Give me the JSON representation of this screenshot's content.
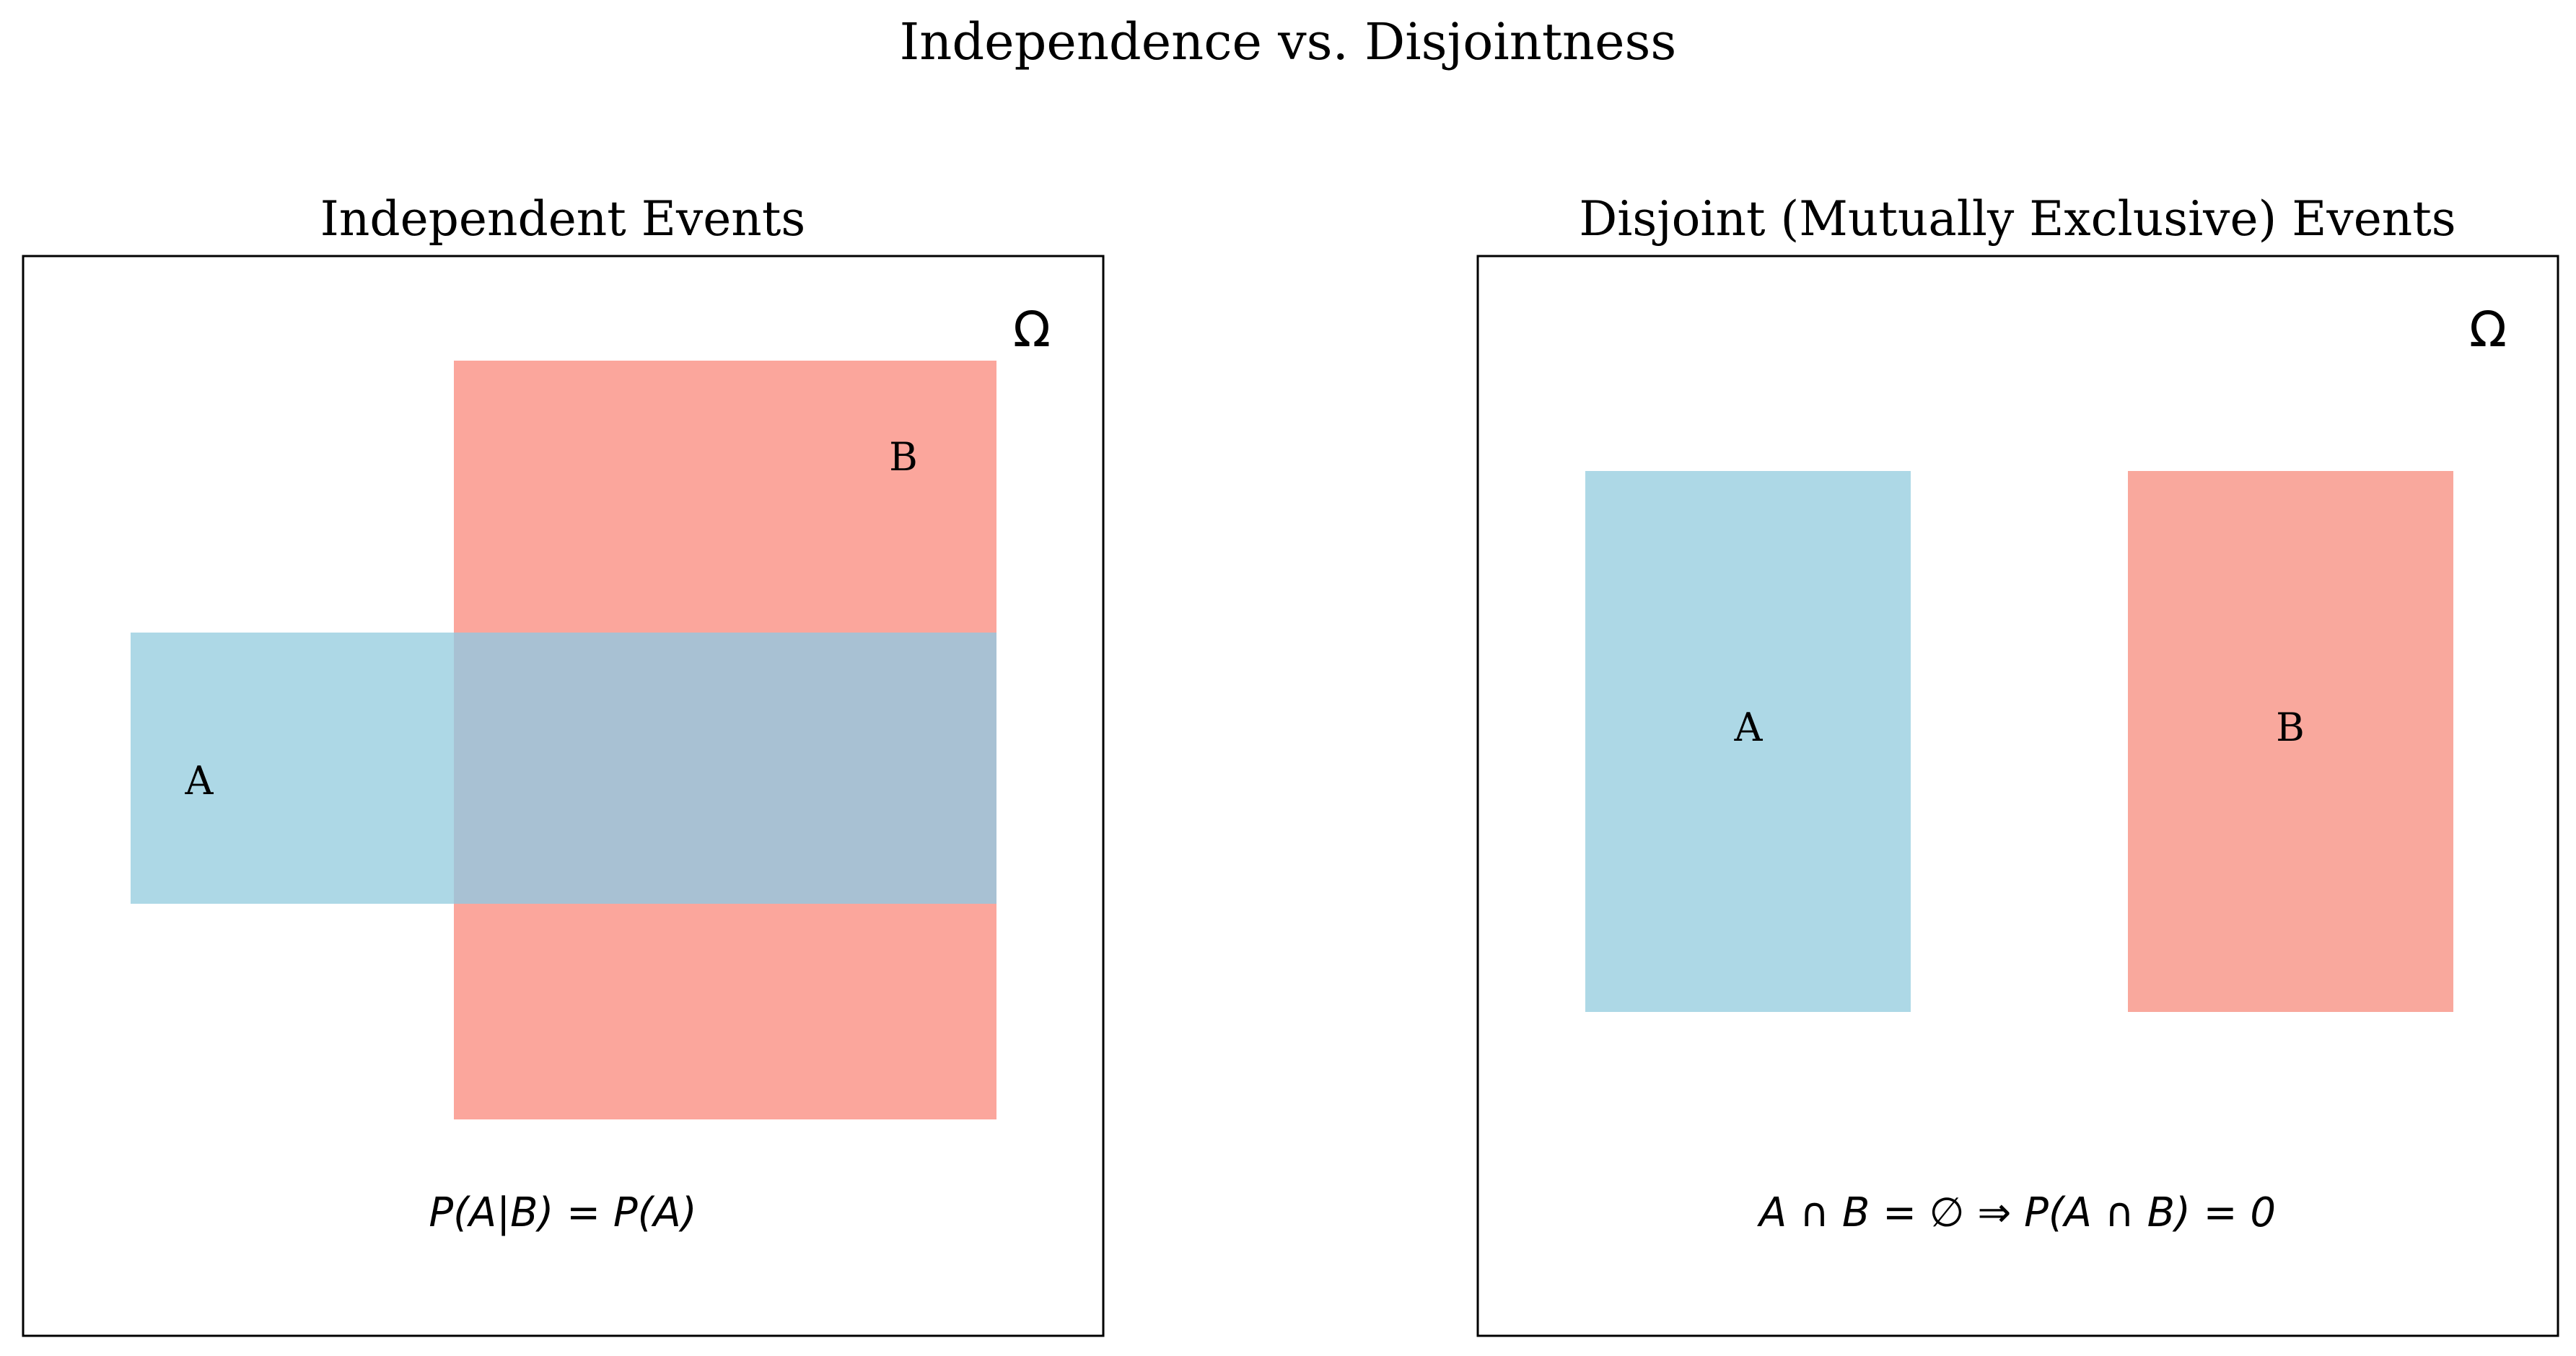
{
  "figure": {
    "title": "Independence vs. Disjointness"
  },
  "colors": {
    "event_a": "#add8e6",
    "event_b": "#fa8072",
    "frame": "#000000"
  },
  "panels": [
    {
      "title": "Independent Events",
      "omega_label": "Ω",
      "event_a_label": "A",
      "event_b_label": "B",
      "formula": "P(A|B) = P(A)"
    },
    {
      "title": "Disjoint (Mutually Exclusive) Events",
      "omega_label": "Ω",
      "event_a_label": "A",
      "event_b_label": "B",
      "formula": "A ∩ B = ∅ ⇒ P(A ∩ B) = 0"
    }
  ]
}
